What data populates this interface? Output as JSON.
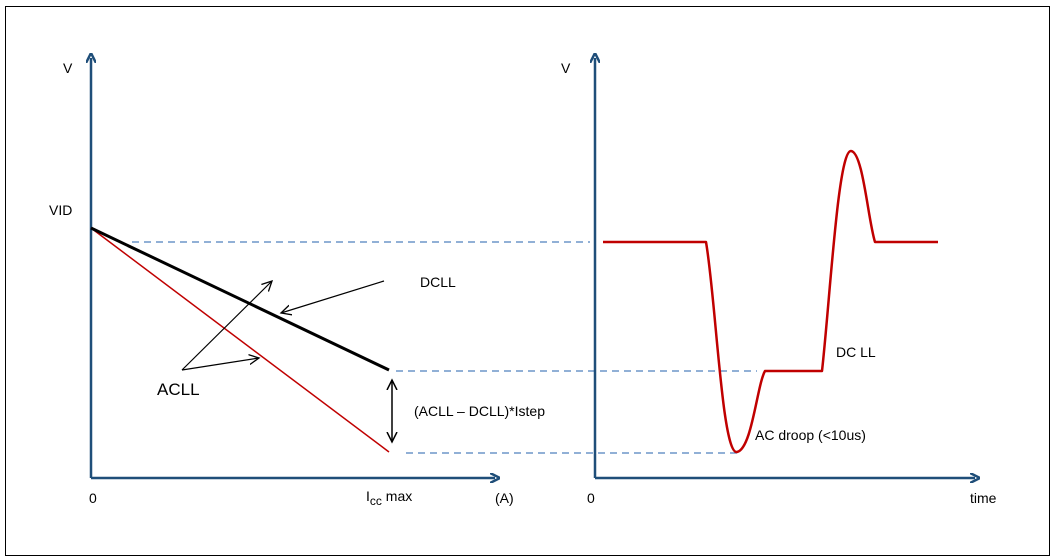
{
  "left_plot": {
    "y_axis_label": "V",
    "vid_label": "VID",
    "origin_label": "0",
    "x_axis_label_main": "I",
    "x_axis_label_sub": "cc",
    "x_axis_label_suffix": " max",
    "x_axis_unit": "(A)",
    "dcll_label": "DCLL",
    "acll_label": "ACLL",
    "step_label": "(ACLL – DCLL)*Istep"
  },
  "right_plot": {
    "y_axis_label": "V",
    "origin_label": "0",
    "x_axis_label": "time",
    "dc_ll_label": "DC LL",
    "ac_droop_label": "AC droop (<10us)"
  },
  "colors": {
    "axis": "#1f4e79",
    "dcll_line": "#000000",
    "acll_line": "#c00000",
    "waveform": "#c00000",
    "guide": "#4f81bd",
    "frame": "#000000"
  }
}
